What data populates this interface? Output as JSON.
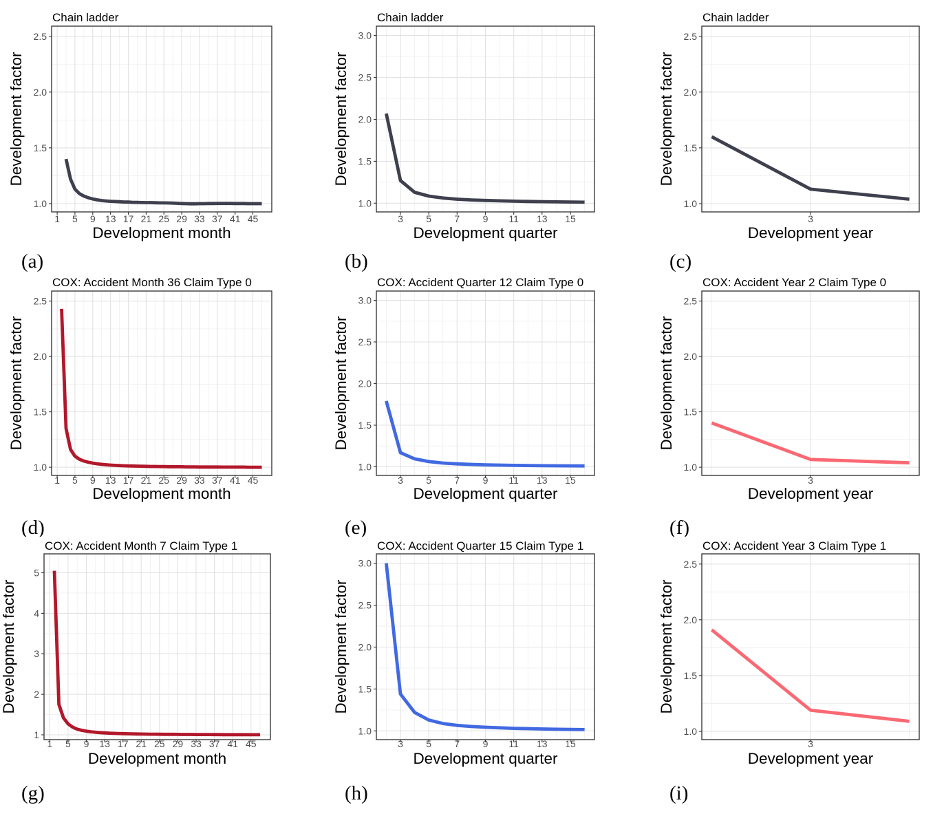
{
  "page": {
    "background": "#ffffff",
    "figure_kind": "3x3 grid of development-factor line charts"
  },
  "colors": {
    "chain_ladder": "#3E404E",
    "cox_month": "#B2182B",
    "cox_quarter": "#4169E1",
    "cox_year": "#FA6973",
    "grid_major": "#E2E2E2",
    "grid_minor": "#F0F0F0",
    "panel_border": "#2B2B2B",
    "tick_text": "#4D4D4D"
  },
  "chart_data": [
    {
      "id": "a",
      "caption": "(a)",
      "type": "line",
      "title": "Chain ladder",
      "xlabel": "Development month",
      "ylabel": "Development factor",
      "color": "#3E404E",
      "grid": true,
      "legend": "none",
      "xlim": [
        -0.25,
        49.25
      ],
      "ylim": [
        0.926,
        2.591
      ],
      "xticks": [
        1,
        5,
        9,
        13,
        17,
        21,
        25,
        29,
        33,
        37,
        41,
        45
      ],
      "xtick_labels": [
        "1",
        "5",
        "9",
        "13",
        "17",
        "21",
        "25",
        "29",
        "33",
        "37",
        "41",
        "45"
      ],
      "xminor": [
        3,
        7,
        11,
        15,
        19,
        23,
        27,
        31,
        35,
        39,
        43,
        47
      ],
      "yticks": [
        1.0,
        1.5,
        2.0,
        2.5
      ],
      "ytick_labels": [
        "1.0",
        "1.5",
        "2.0",
        "2.5"
      ],
      "yminor": [
        1.25,
        1.75,
        2.25
      ],
      "x": [
        3,
        4,
        5,
        6,
        7,
        8,
        9,
        10,
        11,
        12,
        13,
        14,
        15,
        16,
        17,
        18,
        19,
        20,
        21,
        22,
        23,
        24,
        25,
        26,
        27,
        28,
        29,
        30,
        31,
        32,
        33,
        34,
        35,
        36,
        37,
        38,
        39,
        40,
        41,
        42,
        43,
        44,
        45,
        46,
        47
      ],
      "y": [
        1.4,
        1.22,
        1.13,
        1.09,
        1.068,
        1.053,
        1.042,
        1.034,
        1.028,
        1.024,
        1.021,
        1.019,
        1.017,
        1.015,
        1.014,
        1.012,
        1.011,
        1.01,
        1.009,
        1.009,
        1.008,
        1.007,
        1.007,
        1.006,
        1.005,
        1.003,
        1.001,
        1.0,
        0.999,
        0.999,
        1.0,
        1.0,
        1.001,
        1.001,
        1.002,
        1.002,
        1.002,
        1.002,
        1.001,
        1.001,
        1.001,
        1.0,
        1.0,
        1.0,
        1.0
      ]
    },
    {
      "id": "b",
      "caption": "(b)",
      "type": "line",
      "title": "Chain ladder",
      "xlabel": "Development quarter",
      "ylabel": "Development factor",
      "color": "#3E404E",
      "grid": true,
      "legend": "none",
      "xlim": [
        1.3,
        16.7
      ],
      "ylim": [
        0.896,
        3.112
      ],
      "xticks": [
        3,
        5,
        7,
        9,
        11,
        13,
        15
      ],
      "xtick_labels": [
        "3",
        "5",
        "7",
        "9",
        "11",
        "13",
        "15"
      ],
      "xminor": [
        2,
        4,
        6,
        8,
        10,
        12,
        14,
        16
      ],
      "yticks": [
        1.0,
        1.5,
        2.0,
        2.5,
        3.0
      ],
      "ytick_labels": [
        "1.0",
        "1.5",
        "2.0",
        "2.5",
        "3.0"
      ],
      "yminor": [
        1.25,
        1.75,
        2.25,
        2.75
      ],
      "x": [
        2,
        3,
        4,
        5,
        6,
        7,
        8,
        9,
        10,
        11,
        12,
        13,
        14,
        15,
        16
      ],
      "y": [
        2.07,
        1.27,
        1.13,
        1.085,
        1.062,
        1.048,
        1.039,
        1.033,
        1.028,
        1.024,
        1.021,
        1.018,
        1.016,
        1.014,
        1.012
      ]
    },
    {
      "id": "c",
      "caption": "(c)",
      "type": "line",
      "title": "Chain ladder",
      "xlabel": "Development year",
      "ylabel": "Development factor",
      "color": "#3E404E",
      "grid": true,
      "legend": "none",
      "xlim": [
        1.9,
        4.1
      ],
      "ylim": [
        0.926,
        2.591
      ],
      "xticks": [
        3
      ],
      "xtick_labels": [
        "3"
      ],
      "xminor": [
        2,
        4
      ],
      "yticks": [
        1.0,
        1.5,
        2.0,
        2.5
      ],
      "ytick_labels": [
        "1.0",
        "1.5",
        "2.0",
        "2.5"
      ],
      "yminor": [
        1.25,
        1.75,
        2.25
      ],
      "x": [
        2,
        3,
        4
      ],
      "y": [
        1.6,
        1.13,
        1.04
      ]
    },
    {
      "id": "d",
      "caption": "(d)",
      "type": "line",
      "title": "COX: Accident Month 36 Claim Type 0",
      "xlabel": "Development month",
      "ylabel": "Development factor",
      "color": "#B2182B",
      "grid": true,
      "legend": "none",
      "xlim": [
        -0.25,
        49.25
      ],
      "ylim": [
        0.926,
        2.591
      ],
      "xticks": [
        1,
        5,
        9,
        13,
        17,
        21,
        25,
        29,
        33,
        37,
        41,
        45
      ],
      "xtick_labels": [
        "1",
        "5",
        "9",
        "13",
        "17",
        "21",
        "25",
        "29",
        "33",
        "37",
        "41",
        "45"
      ],
      "xminor": [
        3,
        7,
        11,
        15,
        19,
        23,
        27,
        31,
        35,
        39,
        43,
        47
      ],
      "yticks": [
        1.0,
        1.5,
        2.0,
        2.5
      ],
      "ytick_labels": [
        "1.0",
        "1.5",
        "2.0",
        "2.5"
      ],
      "yminor": [
        1.25,
        1.75,
        2.25
      ],
      "x": [
        2,
        3,
        4,
        5,
        6,
        7,
        8,
        9,
        10,
        11,
        12,
        13,
        14,
        15,
        16,
        17,
        18,
        19,
        20,
        21,
        22,
        23,
        24,
        25,
        26,
        27,
        28,
        29,
        30,
        31,
        32,
        33,
        34,
        35,
        36,
        37,
        38,
        39,
        40,
        41,
        42,
        43,
        44,
        45,
        46,
        47
      ],
      "y": [
        2.43,
        1.35,
        1.16,
        1.1,
        1.072,
        1.056,
        1.045,
        1.037,
        1.031,
        1.026,
        1.022,
        1.019,
        1.017,
        1.015,
        1.013,
        1.012,
        1.011,
        1.01,
        1.009,
        1.008,
        1.007,
        1.007,
        1.006,
        1.006,
        1.005,
        1.005,
        1.004,
        1.004,
        1.003,
        1.003,
        1.003,
        1.002,
        1.002,
        1.002,
        1.002,
        1.002,
        1.001,
        1.001,
        1.001,
        1.001,
        1.001,
        1.001,
        1.0,
        1.0,
        1.0,
        1.0
      ]
    },
    {
      "id": "e",
      "caption": "(e)",
      "type": "line",
      "title": "COX: Accident Quarter 12 Claim Type 0",
      "xlabel": "Development quarter",
      "ylabel": "Development factor",
      "color": "#4169E1",
      "grid": true,
      "legend": "none",
      "xlim": [
        1.3,
        16.7
      ],
      "ylim": [
        0.896,
        3.112
      ],
      "xticks": [
        3,
        5,
        7,
        9,
        11,
        13,
        15
      ],
      "xtick_labels": [
        "3",
        "5",
        "7",
        "9",
        "11",
        "13",
        "15"
      ],
      "xminor": [
        2,
        4,
        6,
        8,
        10,
        12,
        14,
        16
      ],
      "yticks": [
        1.0,
        1.5,
        2.0,
        2.5,
        3.0
      ],
      "ytick_labels": [
        "1.0",
        "1.5",
        "2.0",
        "2.5",
        "3.0"
      ],
      "yminor": [
        1.25,
        1.75,
        2.25,
        2.75
      ],
      "x": [
        2,
        3,
        4,
        5,
        6,
        7,
        8,
        9,
        10,
        11,
        12,
        13,
        14,
        15,
        16
      ],
      "y": [
        1.79,
        1.17,
        1.095,
        1.062,
        1.045,
        1.035,
        1.028,
        1.023,
        1.02,
        1.017,
        1.015,
        1.013,
        1.012,
        1.011,
        1.01
      ]
    },
    {
      "id": "f",
      "caption": "(f)",
      "type": "line",
      "title": "COX: Accident Year 2 Claim Type 0",
      "xlabel": "Development year",
      "ylabel": "Development factor",
      "color": "#FA6973",
      "grid": true,
      "legend": "none",
      "xlim": [
        1.9,
        4.1
      ],
      "ylim": [
        0.926,
        2.591
      ],
      "xticks": [
        3
      ],
      "xtick_labels": [
        "3"
      ],
      "xminor": [
        2,
        4
      ],
      "yticks": [
        1.0,
        1.5,
        2.0,
        2.5
      ],
      "ytick_labels": [
        "1.0",
        "1.5",
        "2.0",
        "2.5"
      ],
      "yminor": [
        1.25,
        1.75,
        2.25
      ],
      "x": [
        2,
        3,
        4
      ],
      "y": [
        1.4,
        1.07,
        1.04
      ]
    },
    {
      "id": "g",
      "caption": "(g)",
      "type": "line",
      "title": "COX: Accident Month 7 Claim Type 1",
      "xlabel": "Development month",
      "ylabel": "Development factor",
      "color": "#B2182B",
      "grid": true,
      "legend": "none",
      "xlim": [
        -0.25,
        49.25
      ],
      "ylim": [
        0.881,
        5.467
      ],
      "xticks": [
        1,
        5,
        9,
        13,
        17,
        21,
        25,
        29,
        33,
        37,
        41,
        45
      ],
      "xtick_labels": [
        "1",
        "5",
        "9",
        "13",
        "17",
        "21",
        "25",
        "29",
        "33",
        "37",
        "41",
        "45"
      ],
      "xminor": [
        3,
        7,
        11,
        15,
        19,
        23,
        27,
        31,
        35,
        39,
        43,
        47
      ],
      "yticks": [
        1,
        2,
        3,
        4,
        5
      ],
      "ytick_labels": [
        "1",
        "2",
        "3",
        "4",
        "5"
      ],
      "yminor": [
        1.5,
        2.5,
        3.5,
        4.5
      ],
      "x": [
        2,
        3,
        4,
        5,
        6,
        7,
        8,
        9,
        10,
        11,
        12,
        13,
        14,
        15,
        16,
        17,
        18,
        19,
        20,
        21,
        22,
        23,
        24,
        25,
        26,
        27,
        28,
        29,
        30,
        31,
        32,
        33,
        34,
        35,
        36,
        37,
        38,
        39,
        40,
        41,
        42,
        43,
        44,
        45,
        46,
        47
      ],
      "y": [
        5.05,
        1.75,
        1.42,
        1.27,
        1.19,
        1.14,
        1.11,
        1.09,
        1.075,
        1.063,
        1.054,
        1.047,
        1.041,
        1.036,
        1.032,
        1.029,
        1.026,
        1.023,
        1.021,
        1.019,
        1.017,
        1.016,
        1.015,
        1.013,
        1.012,
        1.011,
        1.011,
        1.01,
        1.009,
        1.008,
        1.008,
        1.007,
        1.007,
        1.006,
        1.006,
        1.005,
        1.005,
        1.004,
        1.004,
        1.004,
        1.003,
        1.003,
        1.003,
        1.002,
        1.002,
        1.002
      ]
    },
    {
      "id": "h",
      "caption": "(h)",
      "type": "line",
      "title": "COX: Accident Quarter 15 Claim Type 1",
      "xlabel": "Development quarter",
      "ylabel": "Development factor",
      "color": "#4169E1",
      "grid": true,
      "legend": "none",
      "xlim": [
        1.3,
        16.7
      ],
      "ylim": [
        0.896,
        3.112
      ],
      "xticks": [
        3,
        5,
        7,
        9,
        11,
        13,
        15
      ],
      "xtick_labels": [
        "3",
        "5",
        "7",
        "9",
        "11",
        "13",
        "15"
      ],
      "xminor": [
        2,
        4,
        6,
        8,
        10,
        12,
        14,
        16
      ],
      "yticks": [
        1.0,
        1.5,
        2.0,
        2.5,
        3.0
      ],
      "ytick_labels": [
        "1.0",
        "1.5",
        "2.0",
        "2.5",
        "3.0"
      ],
      "yminor": [
        1.25,
        1.75,
        2.25,
        2.75
      ],
      "x": [
        2,
        3,
        4,
        5,
        6,
        7,
        8,
        9,
        10,
        11,
        12,
        13,
        14,
        15,
        16
      ],
      "y": [
        3.0,
        1.44,
        1.22,
        1.13,
        1.088,
        1.066,
        1.053,
        1.044,
        1.037,
        1.031,
        1.027,
        1.023,
        1.02,
        1.018,
        1.016
      ]
    },
    {
      "id": "i",
      "caption": "(i)",
      "type": "line",
      "title": "COX: Accident Year 3 Claim Type 1",
      "xlabel": "Development year",
      "ylabel": "Development factor",
      "color": "#FA6973",
      "grid": true,
      "legend": "none",
      "xlim": [
        1.9,
        4.1
      ],
      "ylim": [
        0.926,
        2.591
      ],
      "xticks": [
        3
      ],
      "xtick_labels": [
        "3"
      ],
      "xminor": [
        2,
        4
      ],
      "yticks": [
        1.0,
        1.5,
        2.0,
        2.5
      ],
      "ytick_labels": [
        "1.0",
        "1.5",
        "2.0",
        "2.5"
      ],
      "yminor": [
        1.25,
        1.75,
        2.25
      ],
      "x": [
        2,
        3,
        4
      ],
      "y": [
        1.91,
        1.19,
        1.09
      ]
    }
  ]
}
